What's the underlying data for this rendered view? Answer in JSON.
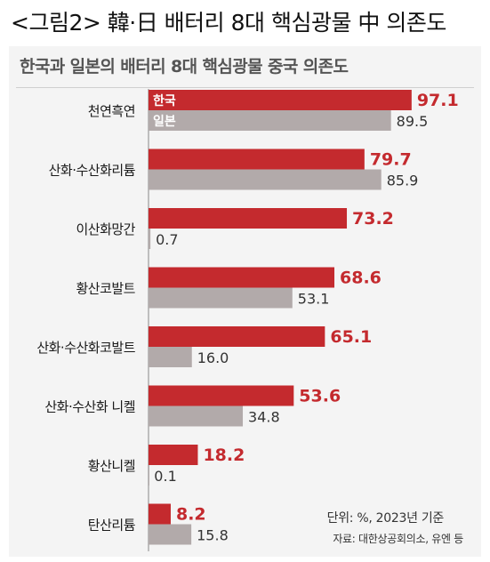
{
  "caption": "<그림2> 韓·日 배터리 8대 핵심광물 中 의존도",
  "colors": {
    "korea": "#c42a2e",
    "japan": "#b2aaaa",
    "panel": "#f4f4f4"
  },
  "chart_data": {
    "type": "bar",
    "orientation": "horizontal",
    "title": "한국과 일본의 배터리 8대 핵심광물 중국 의존도",
    "categories": [
      "천연흑연",
      "산화·수산화리튬",
      "이산화망간",
      "황산코발트",
      "산화·수산화코발트",
      "산화·수산화 니켈",
      "황산니켈",
      "탄산리튬"
    ],
    "series": [
      {
        "name": "한국",
        "values": [
          97.1,
          79.7,
          73.2,
          68.6,
          65.1,
          53.6,
          18.2,
          8.2
        ]
      },
      {
        "name": "일본",
        "values": [
          89.5,
          85.9,
          0.7,
          53.1,
          16.0,
          34.8,
          0.1,
          15.8
        ]
      }
    ],
    "value_labels": {
      "korea": [
        "97.1",
        "79.7",
        "73.2",
        "68.6",
        "65.1",
        "53.6",
        "18.2",
        "8.2"
      ],
      "japan": [
        "89.5",
        "85.9",
        "0.7",
        "53.1",
        "16.0",
        "34.8",
        "0.1",
        "15.8"
      ]
    },
    "xlim": [
      0,
      100
    ],
    "legend_placement": "inside first bars",
    "grid": false,
    "unit_note": "단위: %, 2023년 기준",
    "source": "자료: 대한상공회의소, 유엔 등"
  }
}
